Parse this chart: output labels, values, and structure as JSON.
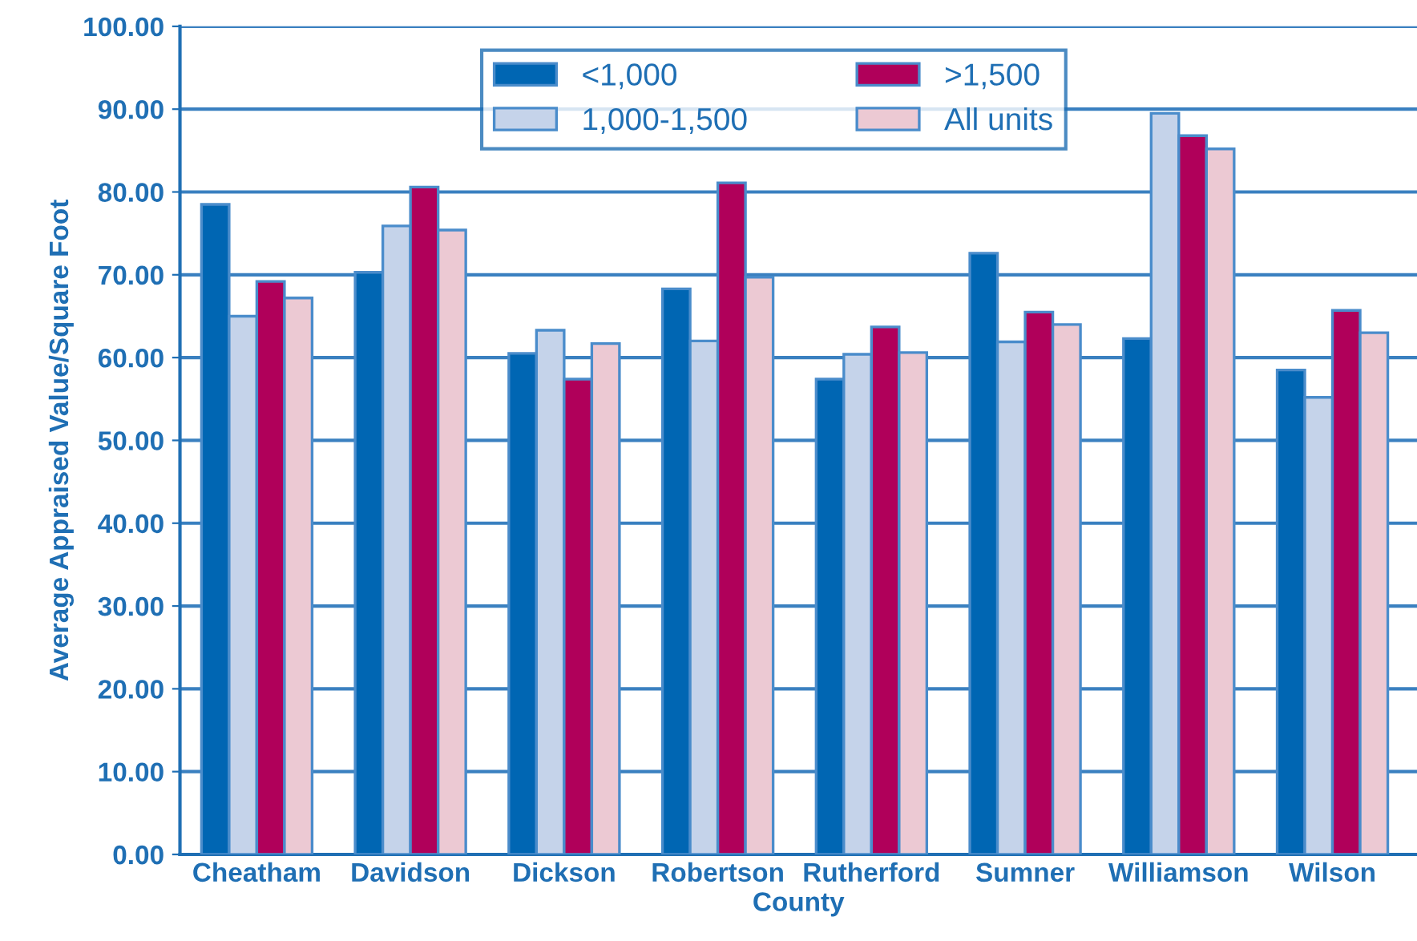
{
  "chart_data": {
    "type": "bar",
    "xlabel": "County",
    "ylabel": "Average Appraised Value/Square Foot",
    "categories": [
      "Cheatham",
      "Davidson",
      "Dickson",
      "Robertson",
      "Rutherford",
      "Sumner",
      "Williamson",
      "Wilson"
    ],
    "series": [
      {
        "name": "<1,000",
        "color": "#0066b3",
        "values": [
          78.5,
          70.3,
          60.5,
          68.3,
          57.4,
          72.6,
          62.3,
          58.5
        ]
      },
      {
        "name": "1,000-1,500",
        "color": "#c5d3ea",
        "values": [
          65.0,
          75.9,
          63.3,
          62.0,
          60.4,
          61.9,
          89.5,
          55.2
        ]
      },
      {
        "name": ">1,500",
        "color": "#b0005a",
        "values": [
          69.2,
          80.6,
          57.4,
          81.1,
          63.7,
          65.5,
          86.8,
          65.7
        ]
      },
      {
        "name": "All units",
        "color": "#ecc9d3",
        "values": [
          67.2,
          75.4,
          61.7,
          69.7,
          60.6,
          64.0,
          85.2,
          63.0
        ]
      }
    ],
    "ylim": [
      0,
      100
    ],
    "yticks": [
      {
        "value": 0,
        "label": "0.00"
      },
      {
        "value": 10,
        "label": "10.00"
      },
      {
        "value": 20,
        "label": "20.00"
      },
      {
        "value": 30,
        "label": "30.00"
      },
      {
        "value": 40,
        "label": "40.00"
      },
      {
        "value": 50,
        "label": "50.00"
      },
      {
        "value": 60,
        "label": "60.00"
      },
      {
        "value": 70,
        "label": "70.00"
      },
      {
        "value": 80,
        "label": "80.00"
      },
      {
        "value": 90,
        "label": "90.00"
      },
      {
        "value": 100,
        "label": "100.00"
      }
    ],
    "grid": "y",
    "legend": "top"
  }
}
